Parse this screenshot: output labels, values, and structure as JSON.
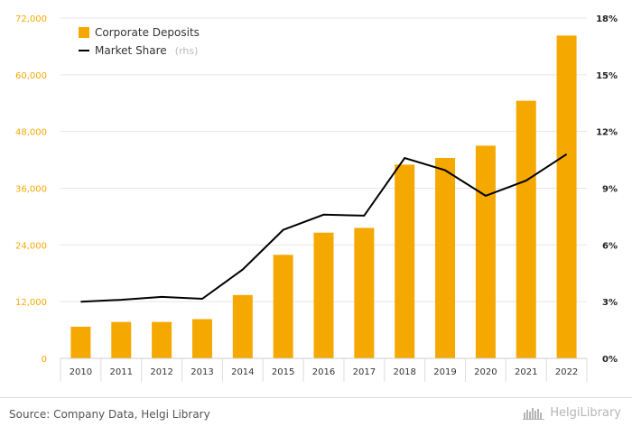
{
  "chart_data": {
    "type": "bar",
    "categories": [
      "2010",
      "2011",
      "2012",
      "2013",
      "2014",
      "2015",
      "2016",
      "2017",
      "2018",
      "2019",
      "2020",
      "2021",
      "2022"
    ],
    "series": [
      {
        "name": "Corporate Deposits",
        "type": "bar",
        "axis": "left",
        "color": "#f5a800",
        "values": [
          6700,
          7700,
          7700,
          8300,
          13400,
          21900,
          26600,
          27600,
          41000,
          42400,
          45000,
          54500,
          68300
        ]
      },
      {
        "name": "Market Share",
        "name_suffix": "(rhs)",
        "type": "line",
        "axis": "right",
        "color": "#000000",
        "values": [
          3.0,
          3.1,
          3.25,
          3.15,
          4.7,
          6.8,
          7.6,
          7.55,
          10.6,
          9.95,
          8.6,
          9.4,
          10.8
        ]
      }
    ],
    "y_left": {
      "ylim": [
        0,
        72000
      ],
      "ticks": [
        "0",
        "12,000",
        "24,000",
        "36,000",
        "48,000",
        "60,000",
        "72,000"
      ]
    },
    "y_right": {
      "ylim": [
        0,
        18
      ],
      "ticks": [
        "0%",
        "3%",
        "6%",
        "9%",
        "12%",
        "15%",
        "18%"
      ]
    },
    "grid": true,
    "legend_position": "top-left"
  },
  "footer": {
    "source": "Source: Company Data, Helgi Library",
    "brand": "HelgiLibrary"
  }
}
